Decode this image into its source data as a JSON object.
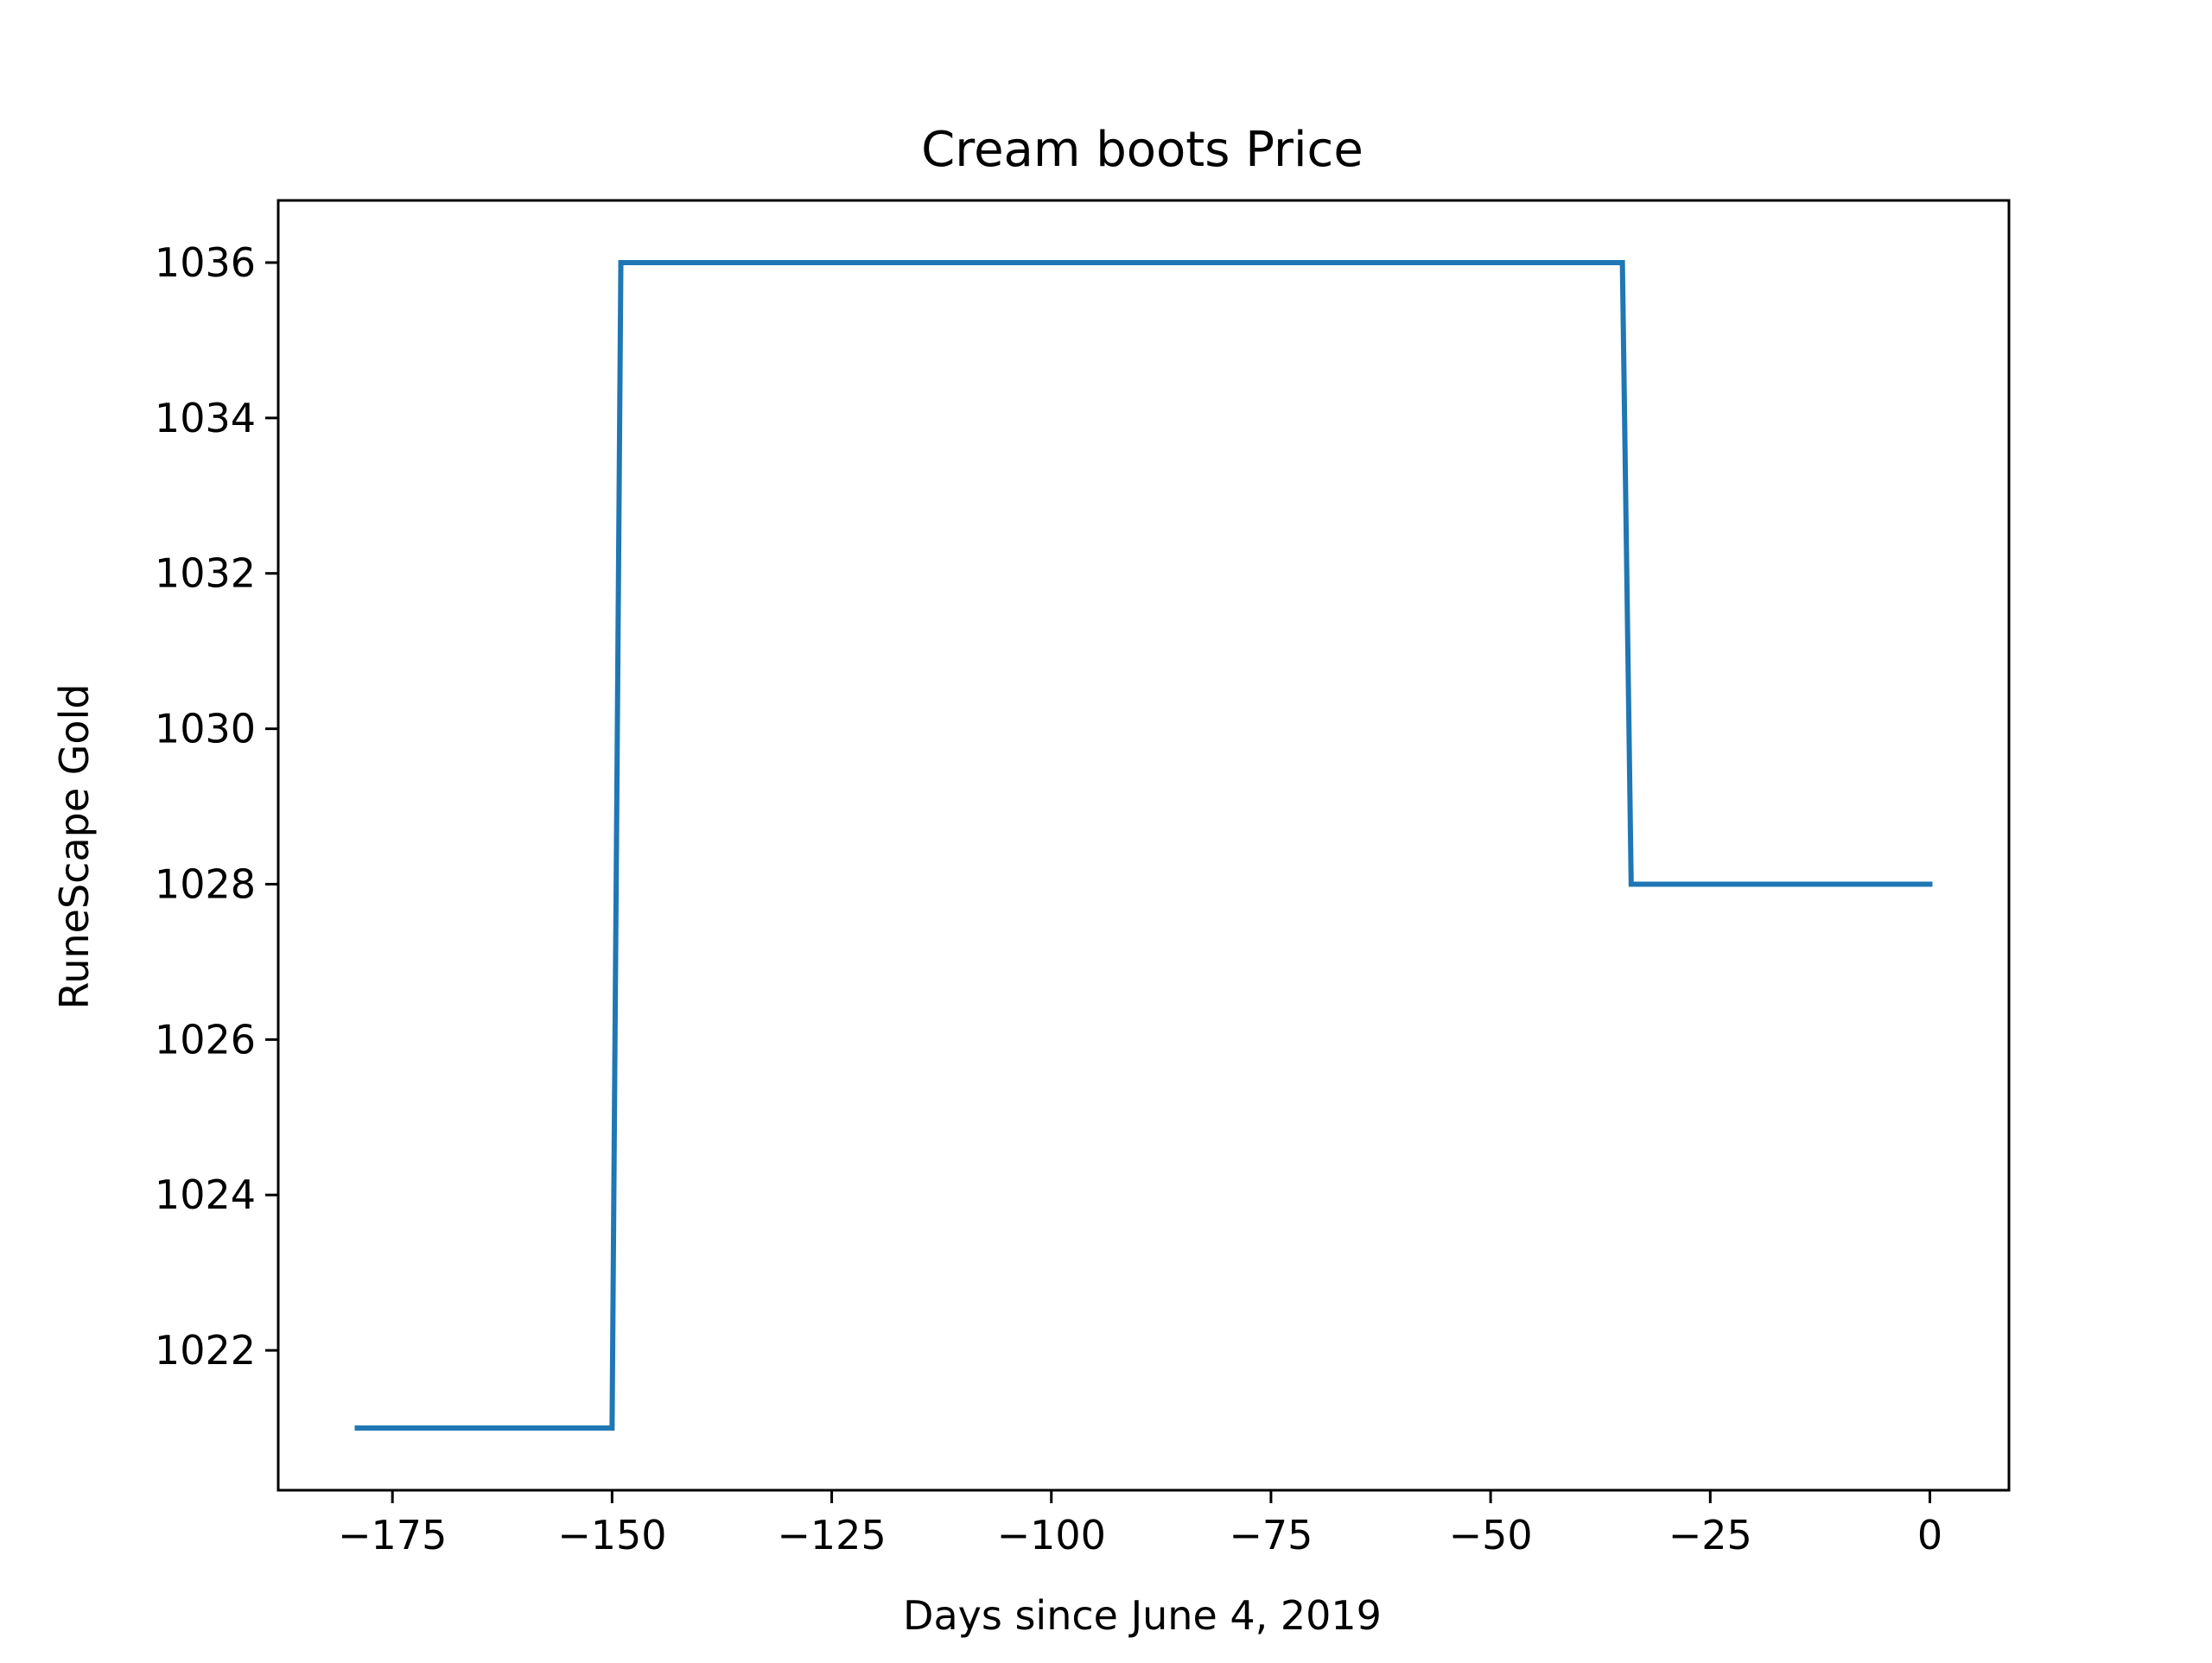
{
  "chart_data": {
    "type": "line",
    "title": "Cream boots Price",
    "xlabel": "Days since June 4, 2019",
    "ylabel": "RuneScape Gold",
    "xlim": [
      -188,
      9
    ],
    "ylim": [
      1020.2,
      1036.8
    ],
    "x_ticks": [
      -175,
      -150,
      -125,
      -100,
      -75,
      -50,
      -25,
      0
    ],
    "x_tick_labels": [
      "−175",
      "−150",
      "−125",
      "−100",
      "−75",
      "−50",
      "−25",
      "0"
    ],
    "y_ticks": [
      1022,
      1024,
      1026,
      1028,
      1030,
      1032,
      1034,
      1036
    ],
    "y_tick_labels": [
      "1022",
      "1024",
      "1026",
      "1028",
      "1030",
      "1032",
      "1034",
      "1036"
    ],
    "grid": false,
    "series": [
      {
        "color": "#1f77b4",
        "x": [
          -179,
          -150,
          -149,
          -35,
          -34,
          0
        ],
        "y": [
          1021,
          1021,
          1036,
          1036,
          1028,
          1028
        ]
      }
    ]
  }
}
